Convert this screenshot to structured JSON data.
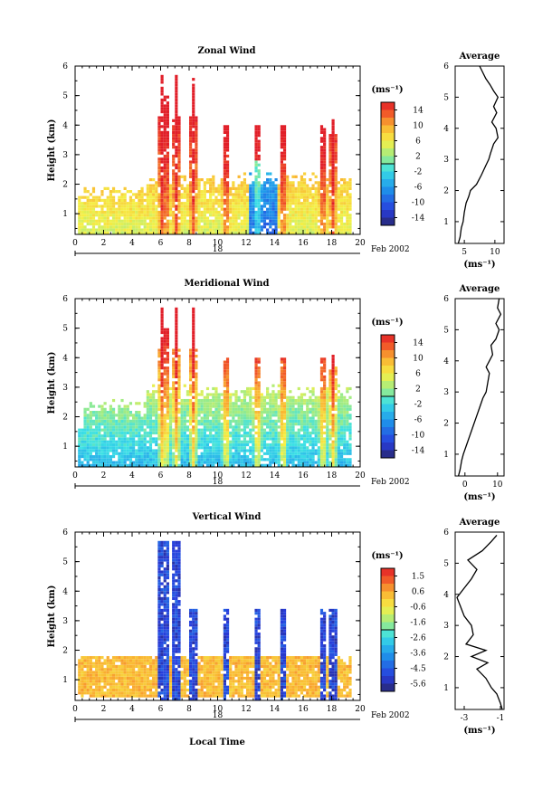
{
  "x_axis": {
    "tick_labels": [
      "0",
      "2",
      "4",
      "6",
      "8",
      "10",
      "12",
      "14",
      "16",
      "18",
      "20"
    ],
    "range": [
      0,
      20
    ],
    "date_marker": "18",
    "date_label": "Feb 2002",
    "xlabel": "Local Time"
  },
  "chart_data": [
    {
      "type": "heatmap",
      "title": "Zonal Wind",
      "ylabel": "Height (km)",
      "yticks": [
        "1",
        "2",
        "3",
        "4",
        "5",
        "6"
      ],
      "ylim": [
        0.3,
        6
      ],
      "colorbar": {
        "unit": "(ms⁻¹)",
        "ticks": [
          "14",
          "10",
          "6",
          "2",
          "-2",
          "-6",
          "-10",
          "-14"
        ],
        "range": [
          -16,
          16
        ]
      },
      "profile": {
        "title": "Average",
        "xlabel": "(ms⁻¹)",
        "xticks": [
          "5",
          "10"
        ],
        "xlim": [
          3.5,
          11.5
        ],
        "heights": [
          0.3,
          0.5,
          0.8,
          1.0,
          1.3,
          1.6,
          1.8,
          2.0,
          2.2,
          2.5,
          2.8,
          3.0,
          3.2,
          3.5,
          3.7,
          4.0,
          4.2,
          4.5,
          4.7,
          5.0,
          5.2,
          5.4,
          5.6,
          5.8,
          6.0
        ],
        "values": [
          4.0,
          4.3,
          4.5,
          4.8,
          5.0,
          5.3,
          5.7,
          6.0,
          7.0,
          7.8,
          8.5,
          9.0,
          9.3,
          9.8,
          10.5,
          10.2,
          9.5,
          10.3,
          9.8,
          10.5,
          9.8,
          9.2,
          8.5,
          8.0,
          7.5
        ]
      }
    },
    {
      "type": "heatmap",
      "title": "Meridional Wind",
      "ylabel": "Height (km)",
      "yticks": [
        "1",
        "2",
        "3",
        "4",
        "5",
        "6"
      ],
      "ylim": [
        0.3,
        6
      ],
      "colorbar": {
        "unit": "(ms⁻¹)",
        "ticks": [
          "14",
          "10",
          "6",
          "2",
          "-2",
          "-6",
          "-10",
          "-14"
        ],
        "range": [
          -16,
          16
        ]
      },
      "profile": {
        "title": "Average",
        "xlabel": "(ms⁻¹)",
        "xticks": [
          "0",
          "10"
        ],
        "xlim": [
          -3,
          12
        ],
        "heights": [
          0.3,
          0.5,
          0.8,
          1.0,
          1.3,
          1.6,
          1.9,
          2.2,
          2.5,
          2.8,
          3.0,
          3.3,
          3.6,
          3.8,
          4.0,
          4.2,
          4.5,
          4.7,
          5.0,
          5.2,
          5.5,
          5.7,
          6.0
        ],
        "values": [
          -2.0,
          -1.5,
          -1.0,
          -0.5,
          0.5,
          1.5,
          2.5,
          3.5,
          4.5,
          5.5,
          6.5,
          7.0,
          7.5,
          6.5,
          7.5,
          8.5,
          8.0,
          9.5,
          10.5,
          9.5,
          11.0,
          10.0,
          10.5
        ]
      }
    },
    {
      "type": "heatmap",
      "title": "Vertical Wind",
      "ylabel": "Height (km)",
      "yticks": [
        "1",
        "2",
        "3",
        "4",
        "5",
        "6"
      ],
      "ylim": [
        0.3,
        6
      ],
      "colorbar": {
        "unit": "(ms⁻¹)",
        "ticks": [
          "1.5",
          "0.6",
          "-0.6",
          "-1.6",
          "-2.6",
          "-3.6",
          "-4.5",
          "-5.6"
        ],
        "range": [
          -6.2,
          2.1
        ]
      },
      "profile": {
        "title": "Average",
        "xlabel": "(ms⁻¹)",
        "xticks": [
          "-3",
          "-1"
        ],
        "xlim": [
          -3.5,
          -0.8
        ],
        "heights": [
          0.3,
          0.5,
          0.8,
          1.0,
          1.3,
          1.6,
          1.8,
          2.0,
          2.2,
          2.4,
          2.7,
          3.0,
          3.3,
          3.6,
          3.9,
          4.2,
          4.5,
          4.8,
          5.1,
          5.4,
          5.7,
          5.9
        ],
        "values": [
          -0.9,
          -1.0,
          -1.2,
          -1.5,
          -1.8,
          -2.3,
          -1.7,
          -2.6,
          -1.8,
          -2.9,
          -2.5,
          -2.6,
          -3.0,
          -3.2,
          -3.4,
          -3.0,
          -2.6,
          -2.3,
          -2.8,
          -2.0,
          -1.5,
          -1.2
        ]
      }
    }
  ]
}
